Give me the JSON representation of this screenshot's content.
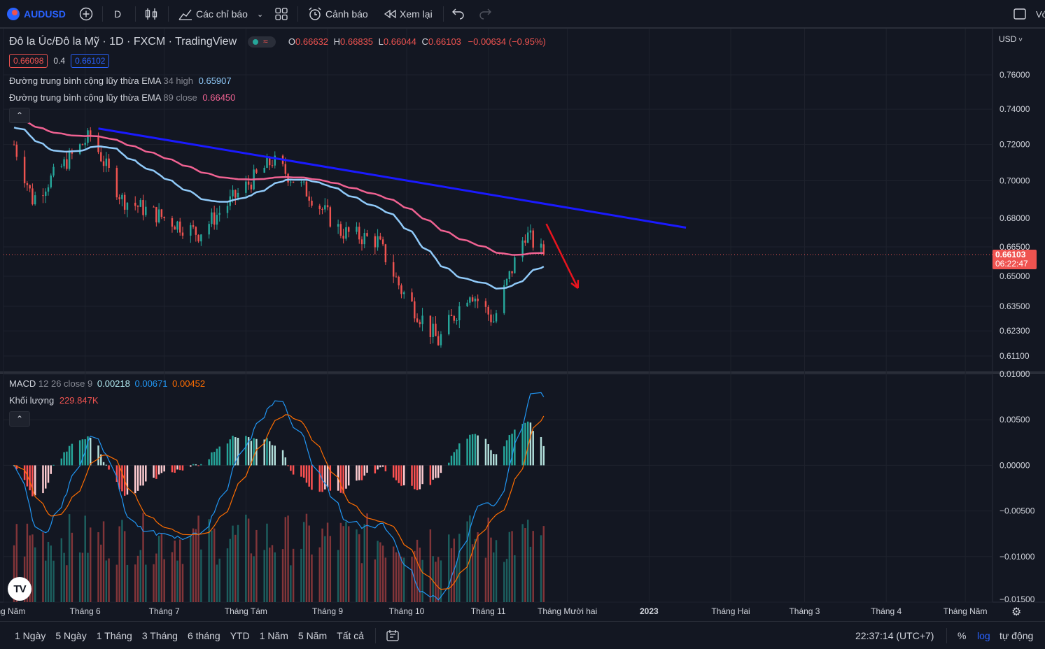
{
  "toolbar": {
    "symbol": "AUDUSD",
    "interval": "D",
    "indicators_label": "Các chỉ báo",
    "alerts_label": "Cảnh báo",
    "replay_label": "Xem lại",
    "right_cut_label": "Vớ"
  },
  "legend": {
    "title": "Đô la Úc/Đô la Mỹ · 1D · FXCM · TradingView",
    "o_label": "O",
    "o_value": "0.66632",
    "h_label": "H",
    "h_value": "0.66835",
    "l_label": "L",
    "l_value": "0.66044",
    "c_label": "C",
    "c_value": "0.66103",
    "change": "−0.00634 (−0.95%)",
    "sell_price": "0.66098",
    "spread": "0.4",
    "buy_price": "0.66102",
    "ema1_name": "Đường trung bình cộng lũy thừa EMA",
    "ema1_params": "34 high",
    "ema1_value": "0.65907",
    "ema2_name": "Đường trung bình cộng lũy thừa EMA",
    "ema2_params": "89 close",
    "ema2_value": "0.66450",
    "macd_name": "MACD",
    "macd_params": "12 26 close 9",
    "macd_hist": "0.00218",
    "macd_line": "0.00671",
    "macd_signal": "0.00452",
    "vol_name": "Khối lượng",
    "vol_value": "229.847K"
  },
  "price_axis": {
    "currency": "USD",
    "ticks": [
      "0.76000",
      "0.74000",
      "0.72000",
      "0.70000",
      "0.68000",
      "0.66500",
      "0.65000",
      "0.63500",
      "0.62300",
      "0.61100"
    ],
    "current_price": "0.66103",
    "countdown": "06:22:47"
  },
  "macd_axis": {
    "ticks": [
      "0.01000",
      "0.00500",
      "0.00000",
      "−0.00500",
      "−0.01000",
      "−0.01500"
    ]
  },
  "time_axis": {
    "labels": [
      "Tháng Năm",
      "Tháng 6",
      "Tháng 7",
      "Tháng Tám",
      "Tháng 9",
      "Tháng 10",
      "Tháng 11",
      "Tháng Mười hai",
      "2023",
      "Tháng Hai",
      "Tháng 3",
      "Tháng 4",
      "Tháng Năm"
    ]
  },
  "bottom": {
    "ranges": [
      "1 Ngày",
      "5 Ngày",
      "1 Tháng",
      "3 Tháng",
      "6 tháng",
      "YTD",
      "1 Năm",
      "5 Năm",
      "Tất cả"
    ],
    "clock": "22:37:14 (UTC+7)",
    "percent": "%",
    "log": "log",
    "auto": "tự động"
  },
  "colors": {
    "up": "#26a69a",
    "down": "#ef5350",
    "ema34": "#90caf9",
    "ema89": "#f06292",
    "trendline": "#1a1aff",
    "arrow": "#e8141e",
    "macd_line": "#2962ff",
    "macd_signal": "#ff6d00"
  },
  "chart_data": {
    "type": "candlestick",
    "symbol": "AUDUSD",
    "timeframe": "1D",
    "y_axis_scale": "log",
    "ylim": [
      0.605,
      0.77
    ],
    "price_path": {
      "description_points": [
        {
          "date": "2022-05-05",
          "close": 0.72
        },
        {
          "date": "2022-05-12",
          "close": 0.69
        },
        {
          "date": "2022-06-03",
          "close": 0.725
        },
        {
          "date": "2022-06-15",
          "close": 0.69
        },
        {
          "date": "2022-07-14",
          "close": 0.672
        },
        {
          "date": "2022-08-11",
          "close": 0.711
        },
        {
          "date": "2022-08-25",
          "close": 0.693
        },
        {
          "date": "2022-09-06",
          "close": 0.673
        },
        {
          "date": "2022-09-20",
          "close": 0.668
        },
        {
          "date": "2022-09-29",
          "close": 0.643
        },
        {
          "date": "2022-10-13",
          "close": 0.618
        },
        {
          "date": "2022-10-25",
          "close": 0.643
        },
        {
          "date": "2022-11-03",
          "close": 0.628
        },
        {
          "date": "2022-11-15",
          "close": 0.672
        },
        {
          "date": "2022-11-22",
          "close": 0.661
        }
      ]
    },
    "ema34_high_last": 0.65907,
    "ema89_close_last": 0.6645,
    "last_ohlc": {
      "open": 0.66632,
      "high": 0.66835,
      "low": 0.66044,
      "close": 0.66103
    },
    "macd": {
      "fast": 12,
      "slow": 26,
      "signal": 9,
      "hist": 0.00218,
      "macd": 0.00671,
      "signal_value": 0.00452
    },
    "macd_ylim": [
      -0.015,
      0.01
    ],
    "volume_last": "229.847K",
    "drawings": [
      {
        "type": "trendline",
        "from": {
          "date": "2022-06-06",
          "price": 0.729
        },
        "to": {
          "date": "2023-01-15",
          "price": 0.675
        }
      },
      {
        "type": "arrow",
        "from": {
          "date": "2022-11-23",
          "price": 0.677
        },
        "to": {
          "date": "2022-12-05",
          "price": 0.644
        }
      }
    ]
  }
}
